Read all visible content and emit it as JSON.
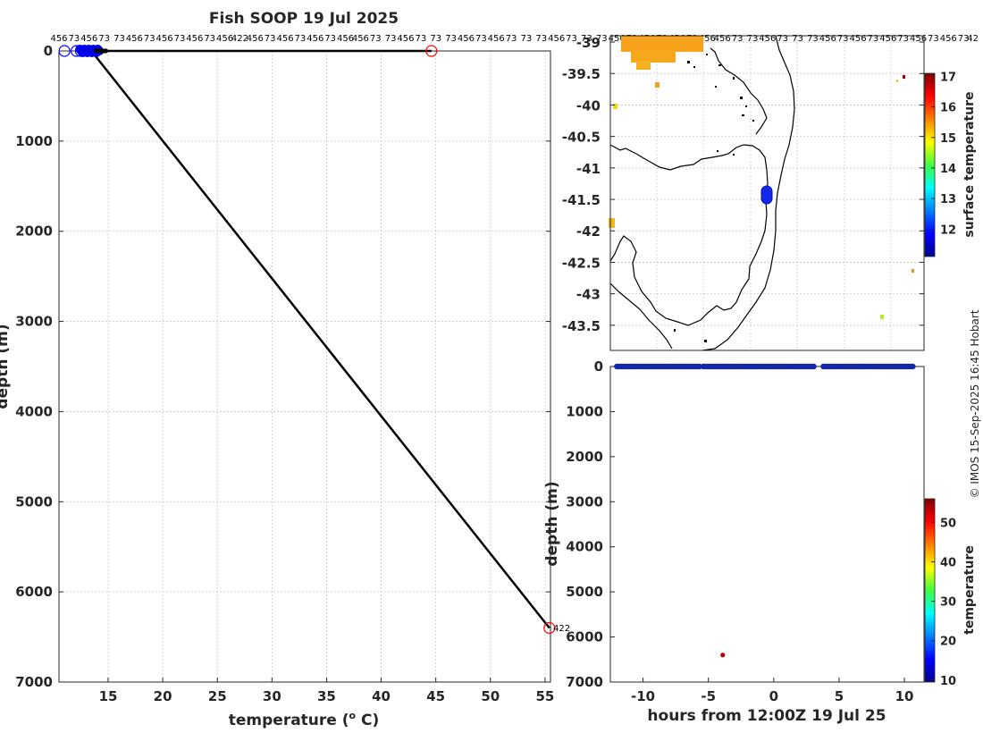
{
  "title": "Fish SOOP 19 Jul 2025",
  "credit": "© IMOS 15-Sep-2025 16:45 Hobart",
  "chart_data": [
    {
      "id": "profile",
      "type": "line",
      "xlabel": "temperature (",
      "xlabel_sup": "o",
      "xlabel_tail": " C)",
      "ylabel": "depth (m)",
      "xlim": [
        10.5,
        55.5
      ],
      "ylim": [
        7000,
        0
      ],
      "xticks": [
        15,
        20,
        25,
        30,
        35,
        40,
        45,
        50,
        55
      ],
      "yticks": [
        0,
        1000,
        2000,
        3000,
        4000,
        5000,
        6000,
        7000
      ],
      "top_labels": [
        "456",
        "73",
        "456",
        "73",
        "73",
        "456",
        "73",
        "456",
        "73",
        "456",
        "73",
        "456",
        "422",
        "456",
        "73",
        "456",
        "73",
        "456",
        "73",
        "456",
        "456",
        "73",
        "73",
        "456",
        "73",
        "73",
        "73",
        "456",
        "73",
        "456",
        "73",
        "73",
        "73",
        "456",
        "73",
        "73",
        "73",
        "456",
        "73",
        "456",
        "73",
        "456",
        "73",
        "456",
        "456",
        "73",
        "73",
        "456",
        "73",
        "73",
        "73",
        "456",
        "73",
        "456",
        "73",
        "456",
        "73",
        "456",
        "73",
        "456",
        "73",
        "42"
      ],
      "series": [
        {
          "name": "profile line",
          "color": "#000000",
          "x": [
            13.2,
            44.6
          ],
          "y": [
            0,
            0
          ]
        },
        {
          "name": "profile line",
          "color": "#000000",
          "x": [
            13.5,
            55.4
          ],
          "y": [
            5,
            6400
          ]
        }
      ],
      "markers": [
        {
          "x": 11.0,
          "y": 0,
          "color": "#0000ff"
        },
        {
          "x": 12.1,
          "y": 0,
          "color": "#0000ff"
        },
        {
          "x": 12.5,
          "y": 0,
          "color": "#0000ff"
        },
        {
          "x": 44.6,
          "y": 0,
          "color": "#ff0000"
        },
        {
          "x": 55.4,
          "y": 6400,
          "color": "#ff0000"
        }
      ],
      "end_label": "422",
      "cluster": {
        "xmin": 12.4,
        "xmax": 14.2,
        "color": "#0000ff"
      }
    },
    {
      "id": "map",
      "type": "heatmap",
      "xlim": [
        -1,
        10
      ],
      "ylim": [
        -43.9,
        -38.9
      ],
      "yticks": [
        -39,
        -39.5,
        -40,
        -40.5,
        -41,
        -41.5,
        -42,
        -42.5,
        -43,
        -43.5
      ],
      "colorbar": {
        "label": "surface temperature",
        "min": 11.1,
        "max": 17.1,
        "ticks": [
          12,
          13,
          14,
          15,
          16,
          17
        ]
      }
    },
    {
      "id": "timeseries",
      "type": "scatter",
      "xlabel": "hours from 12:00Z 19 Jul 25",
      "ylabel": "depth (m)",
      "xlim": [
        -12.5,
        11.5
      ],
      "ylim": [
        7000,
        0
      ],
      "xticks": [
        -10,
        -5,
        0,
        5,
        10
      ],
      "yticks": [
        0,
        1000,
        2000,
        3000,
        4000,
        5000,
        6000,
        7000
      ],
      "surface_segments": [
        [
          -12.0,
          -5.7
        ],
        [
          -5.4,
          3.2
        ],
        [
          3.8,
          10.7
        ]
      ],
      "deep_point": {
        "x": -3.9,
        "y": 6400,
        "color": "#b00000"
      },
      "colorbar": {
        "label": "temperature",
        "min": 9.5,
        "max": 56,
        "ticks": [
          10,
          20,
          30,
          40,
          50
        ]
      }
    }
  ]
}
